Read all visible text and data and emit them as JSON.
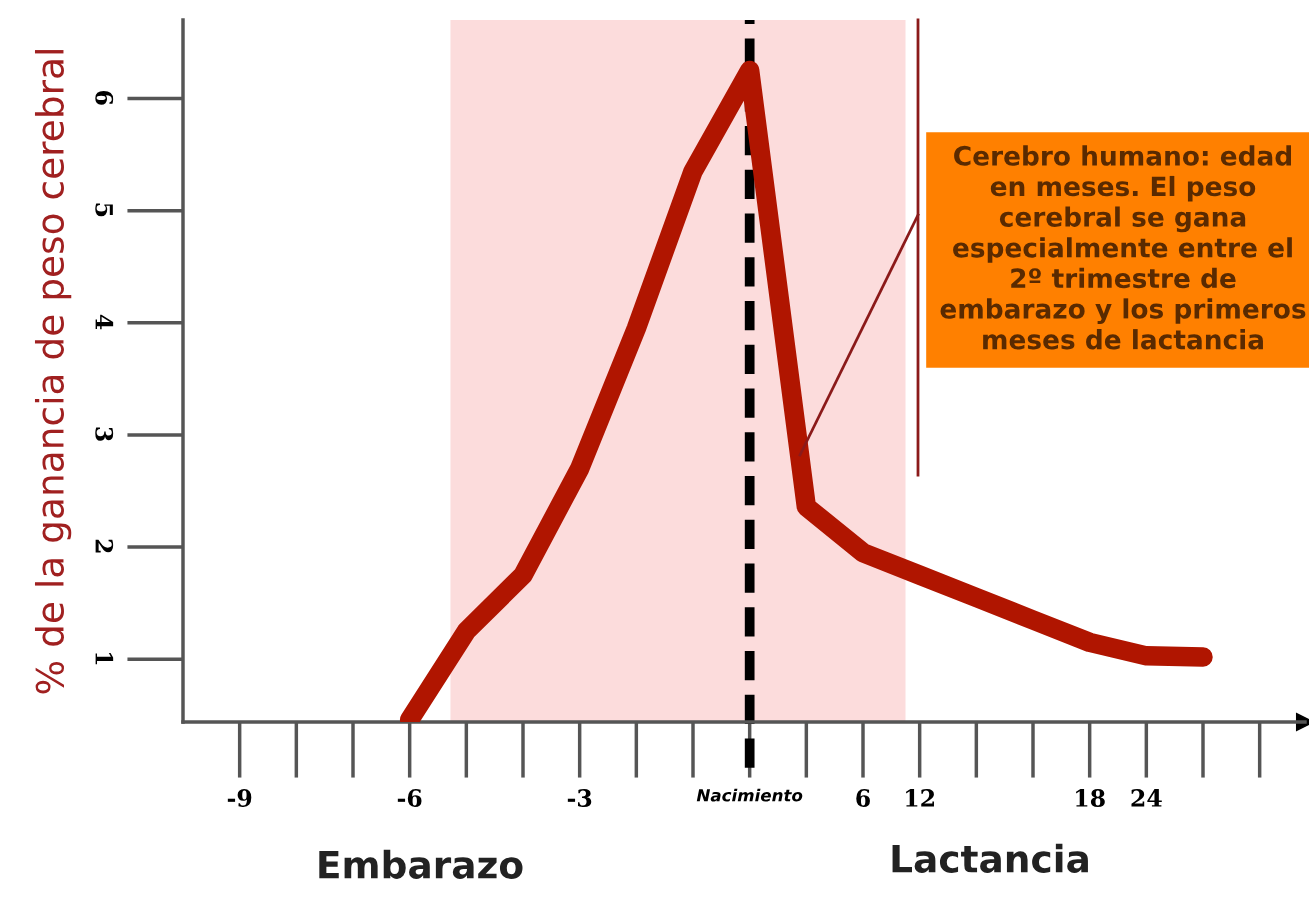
{
  "chart_data": {
    "type": "line",
    "ylabel": "% de la ganancia de peso cerebral",
    "categories": [
      "-9",
      null,
      null,
      "-6",
      null,
      null,
      "-3",
      null,
      null,
      "Nacimiento",
      null,
      "6",
      "12",
      null,
      null,
      "18",
      "24",
      null,
      null
    ],
    "series": [
      {
        "color": "#b01500",
        "values": [
          null,
          null,
          null,
          0.46,
          1.25,
          1.75,
          2.7,
          3.95,
          5.35,
          6.25,
          2.36,
          1.95,
          1.75,
          1.55,
          1.35,
          1.15,
          1.03,
          1.02,
          null
        ]
      }
    ],
    "ylim": [
      0.44,
      6.7
    ],
    "yticks": [
      1,
      2,
      3,
      4,
      5,
      6
    ],
    "ref_lines": [
      {
        "axis": "x",
        "value": "Nacimiento",
        "color": "#000000",
        "line_style": "dashed"
      }
    ],
    "annotations": [
      "Cerebro humano: edad en meses. El peso cerebral se gana especialmente entre el 2º trimestre de embarazo y los primeros meses de lactancia",
      "Embarazo",
      "Lactancia"
    ],
    "grid": false,
    "legend": false,
    "line_style": "solid"
  }
}
